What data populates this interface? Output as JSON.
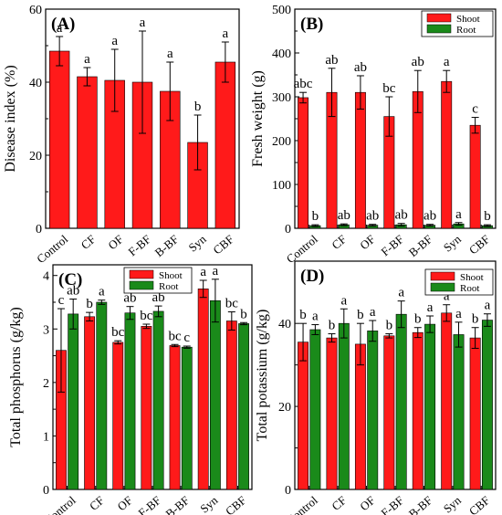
{
  "colors": {
    "shoot": "#ff1a1a",
    "root": "#1a8a1a",
    "single": "#ff1a1a",
    "axis": "#000000",
    "error": "#000000"
  },
  "chart_data": [
    {
      "panel": "(A)",
      "type": "bar",
      "categories": [
        "Control",
        "CF",
        "OF",
        "F-BF",
        "B-BF",
        "Syn",
        "CBF"
      ],
      "series": [
        {
          "values": [
            48.5,
            41.5,
            40.5,
            40,
            37.5,
            23.5,
            45.5
          ],
          "errors": [
            4,
            2.5,
            8.5,
            14,
            8,
            7.5,
            5.5
          ],
          "letters": [
            "a",
            "a",
            "a",
            "a",
            "a",
            "b",
            "a"
          ]
        }
      ],
      "ylabel": "Disease index (%)",
      "xlabel": "",
      "ylim": [
        0,
        60
      ],
      "yticks": [
        0,
        20,
        40,
        60
      ],
      "legend": null
    },
    {
      "panel": "(B)",
      "type": "bar",
      "categories": [
        "Control",
        "CF",
        "OF",
        "F-BF",
        "B-BF",
        "Syn",
        "CBF"
      ],
      "series": [
        {
          "name": "Shoot",
          "values": [
            298,
            310,
            310,
            255,
            312,
            335,
            235
          ],
          "errors": [
            12,
            55,
            38,
            45,
            48,
            25,
            18
          ],
          "letters": [
            "abc",
            "ab",
            "ab",
            "bc",
            "ab",
            "a",
            "c"
          ]
        },
        {
          "name": "Root",
          "values": [
            6,
            8,
            7,
            8,
            7,
            10,
            6
          ],
          "errors": [
            2,
            2,
            2,
            3,
            2,
            3,
            2
          ],
          "letters": [
            "b",
            "ab",
            "ab",
            "ab",
            "ab",
            "a",
            "b"
          ]
        }
      ],
      "ylabel": "Fresh weight (g)",
      "xlabel": "",
      "ylim": [
        0,
        500
      ],
      "yticks": [
        0,
        100,
        200,
        300,
        400,
        500
      ],
      "legend": "top-right"
    },
    {
      "panel": "(C)",
      "type": "bar",
      "categories": [
        "Control",
        "CF",
        "OF",
        "F-BF",
        "B-BF",
        "Syn",
        "CBF"
      ],
      "series": [
        {
          "name": "Shoot",
          "values": [
            2.6,
            3.23,
            2.75,
            3.05,
            2.69,
            3.75,
            3.15
          ],
          "errors": [
            0.78,
            0.08,
            0.03,
            0.04,
            0.02,
            0.16,
            0.17
          ],
          "letters": [
            "c",
            "b",
            "bc",
            "bc",
            "bc",
            "a",
            "bc"
          ]
        },
        {
          "name": "Root",
          "values": [
            3.28,
            3.5,
            3.3,
            3.33,
            2.66,
            3.53,
            3.1
          ],
          "errors": [
            0.28,
            0.04,
            0.12,
            0.1,
            0.02,
            0.4,
            0.02
          ],
          "letters": [
            "ab",
            "a",
            "ab",
            "ab",
            "c",
            "a",
            "b"
          ]
        }
      ],
      "ylabel": "Total phosphorus (g/kg)",
      "xlabel": "",
      "ylim": [
        0,
        4.2
      ],
      "yticks": [
        0,
        1,
        2,
        3,
        4
      ],
      "legend": "top-right"
    },
    {
      "panel": "(D)",
      "type": "bar",
      "categories": [
        "Control",
        "CF",
        "OF",
        "F-BF",
        "B-BF",
        "Syn",
        "CBF"
      ],
      "series": [
        {
          "name": "Shoot",
          "values": [
            35.5,
            36.5,
            35,
            37,
            37.8,
            42.5,
            36.5
          ],
          "errors": [
            4.5,
            1,
            5,
            0.5,
            1.2,
            2,
            2.5
          ],
          "letters": [
            "b",
            "b",
            "b",
            "b",
            "b",
            "a",
            "b"
          ]
        },
        {
          "name": "Root",
          "values": [
            38.5,
            40,
            38.2,
            42.2,
            39.8,
            37.3,
            40.8
          ],
          "errors": [
            1.2,
            3.5,
            2.5,
            3.2,
            2,
            3,
            1.5
          ],
          "letters": [
            "a",
            "a",
            "a",
            "a",
            "a",
            "a",
            "a"
          ]
        }
      ],
      "ylabel": "Total potassium (g/kg)",
      "xlabel": "",
      "ylim": [
        0,
        55
      ],
      "yticks": [
        0,
        20,
        40
      ],
      "legend": "top-right"
    }
  ]
}
